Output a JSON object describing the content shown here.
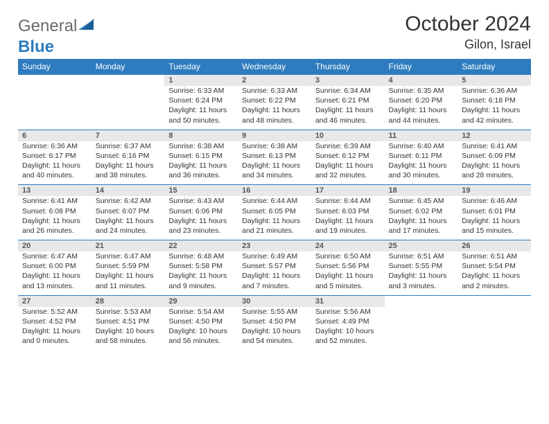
{
  "brand": {
    "part1": "General",
    "part2": "Blue"
  },
  "title": "October 2024",
  "location": "Gilon, Israel",
  "header_bg": "#2e7cbf",
  "header_fg": "#ffffff",
  "daynum_bg": "#e8e8e8",
  "weekdays": [
    "Sunday",
    "Monday",
    "Tuesday",
    "Wednesday",
    "Thursday",
    "Friday",
    "Saturday"
  ],
  "weeks": [
    [
      {
        "n": "",
        "sr": "",
        "ss": "",
        "dl": ""
      },
      {
        "n": "",
        "sr": "",
        "ss": "",
        "dl": ""
      },
      {
        "n": "1",
        "sr": "6:33 AM",
        "ss": "6:24 PM",
        "dl": "11 hours and 50 minutes."
      },
      {
        "n": "2",
        "sr": "6:33 AM",
        "ss": "6:22 PM",
        "dl": "11 hours and 48 minutes."
      },
      {
        "n": "3",
        "sr": "6:34 AM",
        "ss": "6:21 PM",
        "dl": "11 hours and 46 minutes."
      },
      {
        "n": "4",
        "sr": "6:35 AM",
        "ss": "6:20 PM",
        "dl": "11 hours and 44 minutes."
      },
      {
        "n": "5",
        "sr": "6:36 AM",
        "ss": "6:18 PM",
        "dl": "11 hours and 42 minutes."
      }
    ],
    [
      {
        "n": "6",
        "sr": "6:36 AM",
        "ss": "6:17 PM",
        "dl": "11 hours and 40 minutes."
      },
      {
        "n": "7",
        "sr": "6:37 AM",
        "ss": "6:16 PM",
        "dl": "11 hours and 38 minutes."
      },
      {
        "n": "8",
        "sr": "6:38 AM",
        "ss": "6:15 PM",
        "dl": "11 hours and 36 minutes."
      },
      {
        "n": "9",
        "sr": "6:38 AM",
        "ss": "6:13 PM",
        "dl": "11 hours and 34 minutes."
      },
      {
        "n": "10",
        "sr": "6:39 AM",
        "ss": "6:12 PM",
        "dl": "11 hours and 32 minutes."
      },
      {
        "n": "11",
        "sr": "6:40 AM",
        "ss": "6:11 PM",
        "dl": "11 hours and 30 minutes."
      },
      {
        "n": "12",
        "sr": "6:41 AM",
        "ss": "6:09 PM",
        "dl": "11 hours and 28 minutes."
      }
    ],
    [
      {
        "n": "13",
        "sr": "6:41 AM",
        "ss": "6:08 PM",
        "dl": "11 hours and 26 minutes."
      },
      {
        "n": "14",
        "sr": "6:42 AM",
        "ss": "6:07 PM",
        "dl": "11 hours and 24 minutes."
      },
      {
        "n": "15",
        "sr": "6:43 AM",
        "ss": "6:06 PM",
        "dl": "11 hours and 23 minutes."
      },
      {
        "n": "16",
        "sr": "6:44 AM",
        "ss": "6:05 PM",
        "dl": "11 hours and 21 minutes."
      },
      {
        "n": "17",
        "sr": "6:44 AM",
        "ss": "6:03 PM",
        "dl": "11 hours and 19 minutes."
      },
      {
        "n": "18",
        "sr": "6:45 AM",
        "ss": "6:02 PM",
        "dl": "11 hours and 17 minutes."
      },
      {
        "n": "19",
        "sr": "6:46 AM",
        "ss": "6:01 PM",
        "dl": "11 hours and 15 minutes."
      }
    ],
    [
      {
        "n": "20",
        "sr": "6:47 AM",
        "ss": "6:00 PM",
        "dl": "11 hours and 13 minutes."
      },
      {
        "n": "21",
        "sr": "6:47 AM",
        "ss": "5:59 PM",
        "dl": "11 hours and 11 minutes."
      },
      {
        "n": "22",
        "sr": "6:48 AM",
        "ss": "5:58 PM",
        "dl": "11 hours and 9 minutes."
      },
      {
        "n": "23",
        "sr": "6:49 AM",
        "ss": "5:57 PM",
        "dl": "11 hours and 7 minutes."
      },
      {
        "n": "24",
        "sr": "6:50 AM",
        "ss": "5:56 PM",
        "dl": "11 hours and 5 minutes."
      },
      {
        "n": "25",
        "sr": "6:51 AM",
        "ss": "5:55 PM",
        "dl": "11 hours and 3 minutes."
      },
      {
        "n": "26",
        "sr": "6:51 AM",
        "ss": "5:54 PM",
        "dl": "11 hours and 2 minutes."
      }
    ],
    [
      {
        "n": "27",
        "sr": "5:52 AM",
        "ss": "4:52 PM",
        "dl": "11 hours and 0 minutes."
      },
      {
        "n": "28",
        "sr": "5:53 AM",
        "ss": "4:51 PM",
        "dl": "10 hours and 58 minutes."
      },
      {
        "n": "29",
        "sr": "5:54 AM",
        "ss": "4:50 PM",
        "dl": "10 hours and 56 minutes."
      },
      {
        "n": "30",
        "sr": "5:55 AM",
        "ss": "4:50 PM",
        "dl": "10 hours and 54 minutes."
      },
      {
        "n": "31",
        "sr": "5:56 AM",
        "ss": "4:49 PM",
        "dl": "10 hours and 52 minutes."
      },
      {
        "n": "",
        "sr": "",
        "ss": "",
        "dl": ""
      },
      {
        "n": "",
        "sr": "",
        "ss": "",
        "dl": ""
      }
    ]
  ],
  "labels": {
    "sunrise": "Sunrise:",
    "sunset": "Sunset:",
    "daylight": "Daylight:"
  }
}
